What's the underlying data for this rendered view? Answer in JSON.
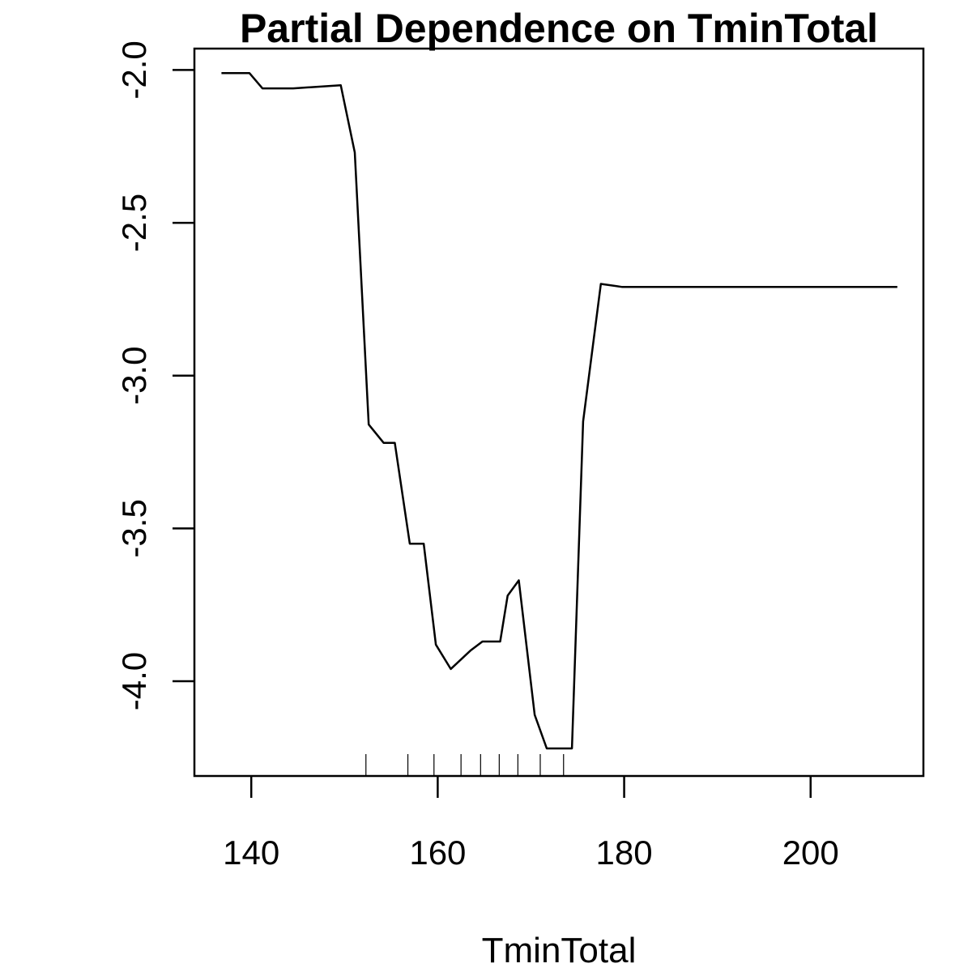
{
  "chart_data": {
    "type": "line",
    "title": "Partial Dependence on TminTotal",
    "xlabel": "TminTotal",
    "ylabel": "",
    "xlim": [
      133.9,
      212.1
    ],
    "ylim": [
      -4.31,
      -1.93
    ],
    "x_ticks": [
      140,
      160,
      180,
      200
    ],
    "x_tick_labels": [
      "140",
      "160",
      "180",
      "200"
    ],
    "y_ticks": [
      -4.0,
      -3.5,
      -3.0,
      -2.5,
      -2.0
    ],
    "y_tick_labels": [
      "-4.0",
      "-3.5",
      "-3.0",
      "-2.5",
      "-2.0"
    ],
    "grid": false,
    "legend": "none",
    "line_color": "#000000",
    "series": [
      {
        "x": [
          136.8,
          139.8,
          141.2,
          144.5,
          149.6,
          151.1,
          152.6,
          154.2,
          155.4,
          157.0,
          158.5,
          159.8,
          161.4,
          163.5,
          164.8,
          166.7,
          167.5,
          168.7,
          170.4,
          171.7,
          173.3,
          174.4,
          175.6,
          177.5,
          179.8,
          209.3
        ],
        "y": [
          -2.01,
          -2.01,
          -2.06,
          -2.06,
          -2.05,
          -2.27,
          -3.16,
          -3.22,
          -3.22,
          -3.55,
          -3.55,
          -3.88,
          -3.96,
          -3.9,
          -3.87,
          -3.87,
          -3.72,
          -3.67,
          -4.11,
          -4.22,
          -4.22,
          -4.22,
          -3.15,
          -2.7,
          -2.71,
          -2.71
        ]
      }
    ],
    "rug_x": [
      152.3,
      156.8,
      159.6,
      162.5,
      164.6,
      166.6,
      168.6,
      171.0,
      173.5
    ]
  }
}
